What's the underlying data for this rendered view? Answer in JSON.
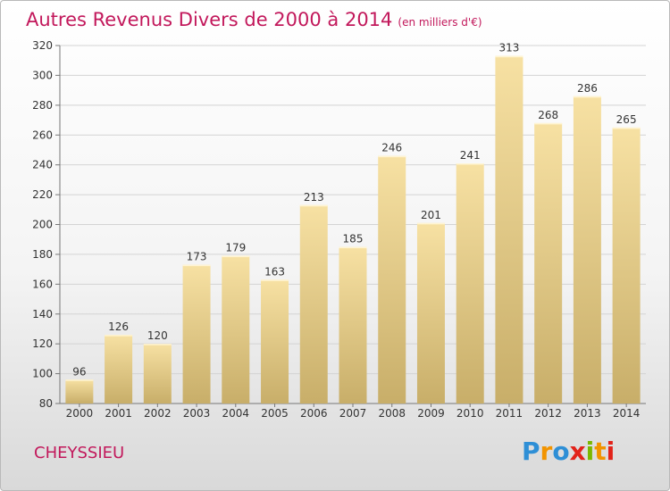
{
  "title": "Autres Revenus Divers de 2000 à 2014",
  "subtitle": "(en milliers d'€)",
  "place": "CHEYSSIEU",
  "logo_letters": [
    "P",
    "r",
    "o",
    "x",
    "i",
    "t",
    "i"
  ],
  "logo_colors": [
    "#2e8fd6",
    "#f29400",
    "#2e8fd6",
    "#e2231a",
    "#7ab800",
    "#f29400",
    "#e2231a"
  ],
  "colors": {
    "accent": "#c2185b",
    "bar_top": "#f7e1a3",
    "bar_bottom": "#c8ae69"
  },
  "chart_data": {
    "type": "bar",
    "categories": [
      "2000",
      "2001",
      "2002",
      "2003",
      "2004",
      "2005",
      "2006",
      "2007",
      "2008",
      "2009",
      "2010",
      "2011",
      "2012",
      "2013",
      "2014"
    ],
    "values": [
      96,
      126,
      120,
      173,
      179,
      163,
      213,
      185,
      246,
      201,
      241,
      313,
      268,
      286,
      265
    ],
    "ylim": [
      80,
      320
    ],
    "yticks": [
      80,
      100,
      120,
      140,
      160,
      180,
      200,
      220,
      240,
      260,
      280,
      300,
      320
    ],
    "grid": true,
    "title": "Autres Revenus Divers de 2000 à 2014",
    "xlabel": "",
    "ylabel": ""
  }
}
